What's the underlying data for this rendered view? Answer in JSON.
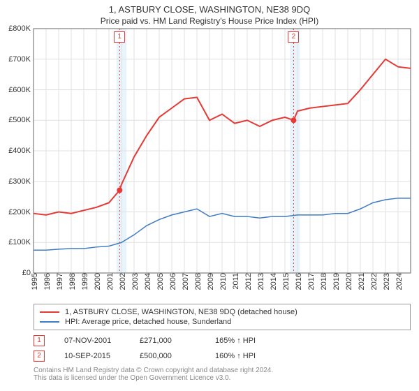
{
  "title": "1, ASTBURY CLOSE, WASHINGTON, NE38 9DQ",
  "subtitle": "Price paid vs. HM Land Registry's House Price Index (HPI)",
  "chart": {
    "type": "line",
    "background_color": "#ffffff",
    "grid_color": "#e0e0e0",
    "axis_color": "#666666",
    "ylabel_prefix": "£",
    "ylim": [
      0,
      800000
    ],
    "ytick_step": 100000,
    "yticks": [
      0,
      100000,
      200000,
      300000,
      400000,
      500000,
      600000,
      700000,
      800000
    ],
    "ytick_labels": [
      "£0",
      "£100K",
      "£200K",
      "£300K",
      "£400K",
      "£500K",
      "£600K",
      "£700K",
      "£800K"
    ],
    "xlim": [
      1995,
      2025
    ],
    "xticks": [
      1995,
      1996,
      1997,
      1998,
      1999,
      2000,
      2001,
      2002,
      2003,
      2004,
      2005,
      2006,
      2007,
      2008,
      2009,
      2010,
      2011,
      2012,
      2013,
      2014,
      2015,
      2016,
      2017,
      2018,
      2019,
      2020,
      2021,
      2022,
      2023,
      2024
    ],
    "tick_fontsize": 11,
    "highlight_bands": [
      {
        "from": 2001.6,
        "to": 2002.4,
        "color": "#e8f4fb"
      },
      {
        "from": 2015.4,
        "to": 2016.2,
        "color": "#e8f4fb"
      }
    ],
    "series": [
      {
        "name": "property_price",
        "label": "1, ASTBURY CLOSE, WASHINGTON, NE38 9DQ (detached house)",
        "color": "#e53935",
        "line_width": 2,
        "data": [
          [
            1995,
            195000
          ],
          [
            1996,
            190000
          ],
          [
            1997,
            200000
          ],
          [
            1998,
            195000
          ],
          [
            1999,
            205000
          ],
          [
            2000,
            215000
          ],
          [
            2001,
            230000
          ],
          [
            2001.85,
            271000
          ],
          [
            2002,
            290000
          ],
          [
            2003,
            380000
          ],
          [
            2004,
            450000
          ],
          [
            2005,
            510000
          ],
          [
            2006,
            540000
          ],
          [
            2007,
            570000
          ],
          [
            2008,
            575000
          ],
          [
            2009,
            500000
          ],
          [
            2010,
            520000
          ],
          [
            2011,
            490000
          ],
          [
            2012,
            500000
          ],
          [
            2013,
            480000
          ],
          [
            2014,
            500000
          ],
          [
            2015,
            510000
          ],
          [
            2015.69,
            500000
          ],
          [
            2016,
            530000
          ],
          [
            2017,
            540000
          ],
          [
            2018,
            545000
          ],
          [
            2019,
            550000
          ],
          [
            2020,
            555000
          ],
          [
            2021,
            600000
          ],
          [
            2022,
            650000
          ],
          [
            2023,
            700000
          ],
          [
            2024,
            675000
          ],
          [
            2025,
            670000
          ]
        ]
      },
      {
        "name": "hpi",
        "label": "HPI: Average price, detached house, Sunderland",
        "color": "#3f7cc4",
        "line_width": 1.5,
        "data": [
          [
            1995,
            75000
          ],
          [
            1996,
            75000
          ],
          [
            1997,
            78000
          ],
          [
            1998,
            80000
          ],
          [
            1999,
            80000
          ],
          [
            2000,
            85000
          ],
          [
            2001,
            88000
          ],
          [
            2002,
            100000
          ],
          [
            2003,
            125000
          ],
          [
            2004,
            155000
          ],
          [
            2005,
            175000
          ],
          [
            2006,
            190000
          ],
          [
            2007,
            200000
          ],
          [
            2008,
            210000
          ],
          [
            2009,
            185000
          ],
          [
            2010,
            195000
          ],
          [
            2011,
            185000
          ],
          [
            2012,
            185000
          ],
          [
            2013,
            180000
          ],
          [
            2014,
            185000
          ],
          [
            2015,
            185000
          ],
          [
            2016,
            190000
          ],
          [
            2017,
            190000
          ],
          [
            2018,
            190000
          ],
          [
            2019,
            195000
          ],
          [
            2020,
            195000
          ],
          [
            2021,
            210000
          ],
          [
            2022,
            230000
          ],
          [
            2023,
            240000
          ],
          [
            2024,
            245000
          ],
          [
            2025,
            245000
          ]
        ]
      }
    ],
    "sale_markers": [
      {
        "n": "1",
        "year": 2001.85,
        "value": 271000,
        "line_color": "#e53935",
        "band_color": "#e8f4fb"
      },
      {
        "n": "2",
        "year": 2015.69,
        "value": 500000,
        "line_color": "#e53935",
        "band_color": "#e8f4fb"
      }
    ],
    "sale_point_color": "#e53935",
    "sale_point_radius": 4
  },
  "legend": {
    "items": [
      {
        "color": "#e53935",
        "label": "1, ASTBURY CLOSE, WASHINGTON, NE38 9DQ (detached house)"
      },
      {
        "color": "#3f7cc4",
        "label": "HPI: Average price, detached house, Sunderland"
      }
    ]
  },
  "sales": [
    {
      "n": "1",
      "date": "07-NOV-2001",
      "price": "£271,000",
      "vs_hpi": "165% ↑ HPI",
      "box_color": "#e53935"
    },
    {
      "n": "2",
      "date": "10-SEP-2015",
      "price": "£500,000",
      "vs_hpi": "160% ↑ HPI",
      "box_color": "#e53935"
    }
  ],
  "footer": {
    "line1": "Contains HM Land Registry data © Crown copyright and database right 2024.",
    "line2": "This data is licensed under the Open Government Licence v3.0."
  }
}
